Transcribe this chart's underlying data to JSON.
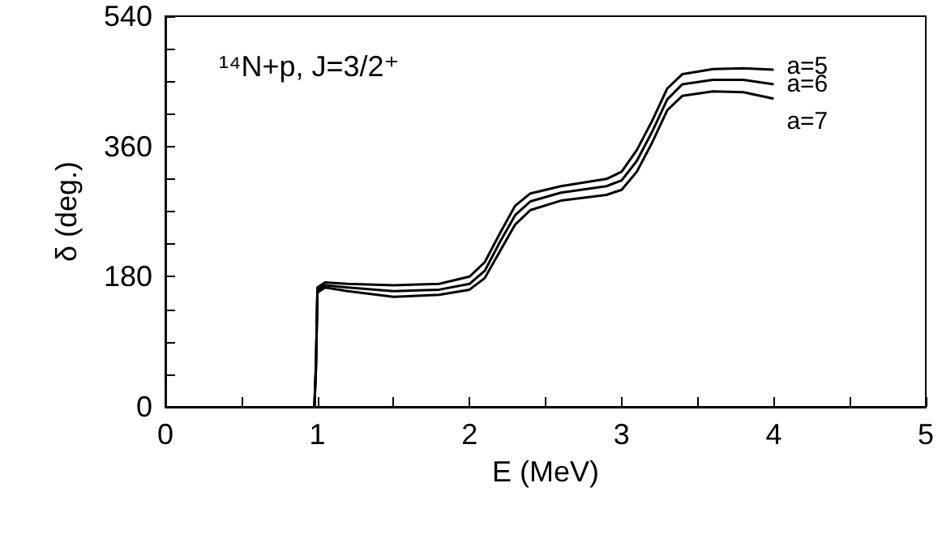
{
  "chart_data": {
    "type": "line",
    "xlabel": "E (MeV)",
    "ylabel": "δ (deg.)",
    "annotations": [
      "¹⁴N+p, J=3/2⁺"
    ],
    "x": [
      0.97,
      0.98,
      0.99,
      1.0,
      1.05,
      1.2,
      1.5,
      1.8,
      2.0,
      2.1,
      2.2,
      2.3,
      2.4,
      2.6,
      2.9,
      3.0,
      3.1,
      3.2,
      3.3,
      3.4,
      3.6,
      3.8,
      4.0
    ],
    "series": [
      {
        "name": "a=5",
        "color": "#000000",
        "values": [
          0,
          0,
          60,
          165,
          172,
          170,
          168,
          170,
          180,
          200,
          240,
          278,
          295,
          305,
          315,
          325,
          355,
          395,
          440,
          460,
          467,
          468,
          466
        ]
      },
      {
        "name": "a=6",
        "color": "#000000",
        "values": [
          0,
          0,
          55,
          162,
          168,
          165,
          160,
          162,
          170,
          188,
          228,
          265,
          284,
          296,
          305,
          313,
          340,
          380,
          425,
          446,
          452,
          452,
          446
        ]
      },
      {
        "name": "a=7",
        "color": "#000000",
        "values": [
          0,
          0,
          50,
          158,
          165,
          160,
          152,
          155,
          162,
          178,
          215,
          252,
          272,
          285,
          293,
          300,
          325,
          365,
          410,
          430,
          436,
          435,
          426
        ]
      }
    ],
    "xlim": [
      0,
      5
    ],
    "ylim": [
      0,
      540
    ],
    "xticks": [
      0,
      {
        "value": 0.5,
        "label": null
      },
      1,
      {
        "value": 1.5,
        "label": null
      },
      2,
      {
        "value": 2.5,
        "label": null
      },
      3,
      {
        "value": 3.5,
        "label": null
      },
      4,
      {
        "value": 4.5,
        "label": null
      },
      5
    ],
    "yticks": [
      0,
      {
        "value": 45,
        "label": null
      },
      {
        "value": 90,
        "label": null
      },
      {
        "value": 135,
        "label": null
      },
      180,
      {
        "value": 225,
        "label": null
      },
      {
        "value": 270,
        "label": null
      },
      {
        "value": 315,
        "label": null
      },
      360,
      {
        "value": 405,
        "label": null
      },
      {
        "value": 450,
        "label": null
      },
      {
        "value": 495,
        "label": null
      },
      540
    ],
    "grid": false,
    "legend": false,
    "marker": "none",
    "line_style": "solid"
  }
}
